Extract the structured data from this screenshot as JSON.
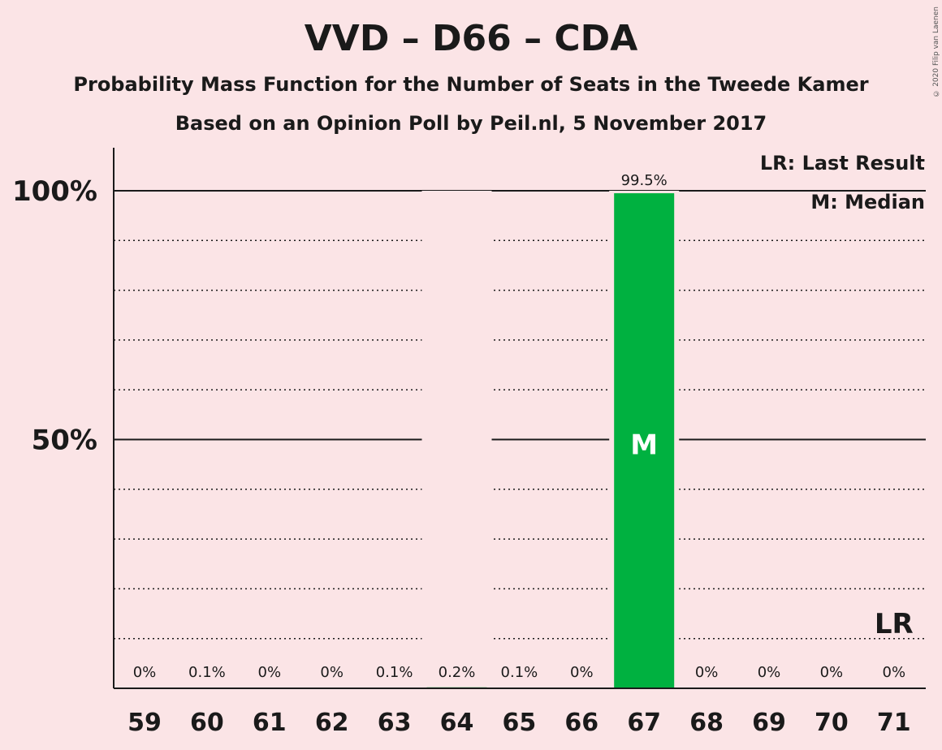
{
  "title": "VVD – D66 – CDA",
  "subtitle": "Probability Mass Function for the Number of Seats in the Tweede Kamer",
  "subtitle2": "Based on an Opinion Poll by Peil.nl, 5 November 2017",
  "copyright": "© 2020 Filip van Laenen",
  "legend": {
    "last_result": "LR: Last Result",
    "median": "M: Median"
  },
  "colors": {
    "background": "#fbe4e6",
    "bar": "#00b140",
    "text": "#1a1a1a"
  },
  "chart_data": {
    "type": "bar",
    "categories": [
      "59",
      "60",
      "61",
      "62",
      "63",
      "64",
      "65",
      "66",
      "67",
      "68",
      "69",
      "70",
      "71"
    ],
    "values": [
      0,
      0.1,
      0,
      0,
      0.1,
      0.2,
      0.1,
      0,
      99.5,
      0,
      0,
      0,
      0
    ],
    "labels": [
      "0%",
      "0.1%",
      "0%",
      "0%",
      "0.1%",
      "0.2%",
      "0.1%",
      "0%",
      "99.5%",
      "0%",
      "0%",
      "0%",
      "0%"
    ],
    "ylim": [
      0,
      100
    ],
    "yticks": [
      {
        "value": 50,
        "label": "50%"
      },
      {
        "value": 100,
        "label": "100%"
      }
    ],
    "gridlines_minor": [
      10,
      20,
      30,
      40,
      60,
      70,
      80,
      90
    ],
    "median": {
      "category": "67",
      "label": "M"
    },
    "last_result": {
      "category": "71",
      "label": "LR"
    }
  }
}
